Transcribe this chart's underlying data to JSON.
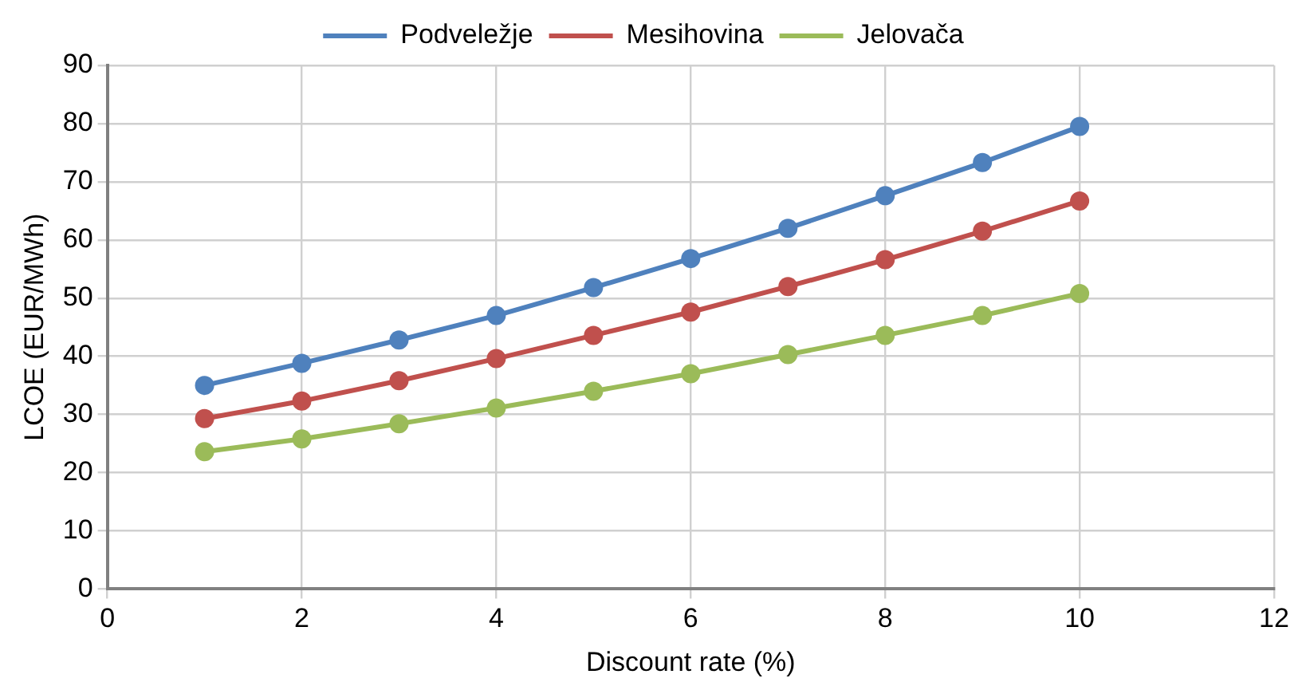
{
  "chart_data": {
    "type": "line",
    "xlabel": "Discount rate (%)",
    "ylabel": "LCOE (EUR/MWh)",
    "x": [
      1,
      2,
      3,
      4,
      5,
      6,
      7,
      8,
      9,
      10
    ],
    "series": [
      {
        "name": "Podveležje",
        "color": "#4f81bd",
        "values": [
          35,
          38.8,
          42.8,
          47,
          51.8,
          56.8,
          62,
          67.6,
          73.3,
          79.5
        ]
      },
      {
        "name": "Mesihovina",
        "color": "#c0504d",
        "values": [
          29.3,
          32.3,
          35.8,
          39.6,
          43.6,
          47.6,
          52,
          56.6,
          61.5,
          66.7
        ]
      },
      {
        "name": "Jelovača",
        "color": "#9bbb59",
        "values": [
          23.6,
          25.8,
          28.4,
          31.1,
          34,
          37,
          40.3,
          43.6,
          47,
          50.8
        ]
      }
    ],
    "xlim": [
      0,
      12
    ],
    "xticks": [
      0,
      2,
      4,
      6,
      8,
      10,
      12
    ],
    "ylim": [
      0,
      90
    ],
    "yticks": [
      0,
      10,
      20,
      30,
      40,
      50,
      60,
      70,
      80,
      90
    ],
    "grid": true,
    "legend": "top",
    "marker": "circle",
    "line_style": "solid"
  }
}
